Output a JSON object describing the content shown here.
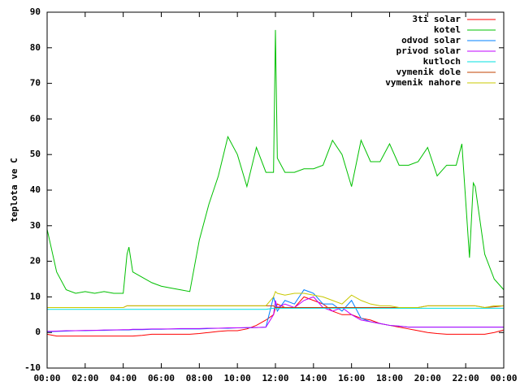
{
  "chart_data": {
    "type": "line",
    "ylabel": "teplota ve C",
    "x": [
      0,
      0.5,
      1,
      1.5,
      2,
      2.5,
      3,
      3.5,
      4,
      4.2,
      4.3,
      4.5,
      5,
      5.5,
      6,
      6.5,
      7,
      7.5,
      8,
      8.5,
      9,
      9.5,
      10,
      10.5,
      11,
      11.5,
      11.9,
      12,
      12.1,
      12.5,
      13,
      13.5,
      14,
      14.5,
      15,
      15.5,
      16,
      16.5,
      17,
      17.5,
      18,
      18.5,
      19,
      19.5,
      20,
      20.5,
      21,
      21.5,
      21.8,
      22,
      22.2,
      22.4,
      22.5,
      23,
      23.5,
      24
    ],
    "xlim": [
      0,
      24
    ],
    "xticks": [
      {
        "value": 0,
        "label": "00:00"
      },
      {
        "value": 2,
        "label": "02:00"
      },
      {
        "value": 4,
        "label": "04:00"
      },
      {
        "value": 6,
        "label": "06:00"
      },
      {
        "value": 8,
        "label": "08:00"
      },
      {
        "value": 10,
        "label": "10:00"
      },
      {
        "value": 12,
        "label": "12:00"
      },
      {
        "value": 14,
        "label": "14:00"
      },
      {
        "value": 16,
        "label": "16:00"
      },
      {
        "value": 18,
        "label": "18:00"
      },
      {
        "value": 20,
        "label": "20:00"
      },
      {
        "value": 22,
        "label": "22:00"
      },
      {
        "value": 24,
        "label": "00:00"
      }
    ],
    "ylim": [
      -10,
      90
    ],
    "yticks": [
      -10,
      0,
      10,
      20,
      30,
      40,
      50,
      60,
      70,
      80,
      90
    ],
    "legend": "top-right",
    "series": [
      {
        "name": "3ti solar",
        "color": "#ff0000",
        "values": [
          -0.5,
          -1,
          -1,
          -1,
          -1,
          -1,
          -1,
          -1,
          -1,
          -1,
          -1,
          -1,
          -0.8,
          -0.5,
          -0.5,
          -0.5,
          -0.5,
          -0.5,
          -0.3,
          0,
          0.3,
          0.5,
          0.5,
          1,
          2,
          3.5,
          5,
          7,
          8,
          7,
          7,
          10,
          9,
          8,
          6,
          5,
          5,
          4,
          3.5,
          2.5,
          2,
          1.5,
          1,
          0.5,
          0,
          -0.3,
          -0.5,
          -0.5,
          -0.5,
          -0.5,
          -0.5,
          -0.5,
          -0.5,
          -0.5,
          0,
          0.7
        ]
      },
      {
        "name": "kotel",
        "color": "#00c000",
        "values": [
          29,
          17,
          12,
          11,
          11.5,
          11,
          11.5,
          11,
          11,
          22,
          24,
          17,
          15.5,
          14,
          13,
          12.5,
          12,
          11.5,
          26,
          36,
          44,
          55,
          50,
          41,
          52,
          45,
          45,
          85,
          49,
          45,
          45,
          46,
          46,
          47,
          54,
          50,
          41,
          54,
          48,
          48,
          53,
          47,
          47,
          48,
          52,
          44,
          47,
          47,
          53,
          37,
          21,
          42,
          41,
          22,
          15,
          12
        ]
      },
      {
        "name": "odvod solar",
        "color": "#0080ff",
        "values": [
          0.2,
          0.3,
          0.4,
          0.5,
          0.5,
          0.6,
          0.6,
          0.7,
          0.7,
          0.7,
          0.7,
          0.8,
          0.8,
          0.9,
          0.9,
          1,
          1,
          1,
          1,
          1.1,
          1.2,
          1.2,
          1.3,
          1.3,
          1.4,
          1.5,
          10,
          8,
          6,
          9,
          8,
          12,
          11,
          8,
          8,
          6,
          9,
          4,
          3,
          2.5,
          2,
          1.8,
          1.5,
          1.5,
          1.5,
          1.5,
          1.5,
          1.5,
          1.5,
          1.5,
          1.5,
          1.5,
          1.5,
          1.5,
          1.5,
          1.5
        ]
      },
      {
        "name": "privod solar",
        "color": "#c000ff",
        "values": [
          0.3,
          0.4,
          0.5,
          0.5,
          0.6,
          0.6,
          0.7,
          0.7,
          0.8,
          0.8,
          0.8,
          0.9,
          0.9,
          1,
          1,
          1,
          1.1,
          1.1,
          1.1,
          1.2,
          1.2,
          1.3,
          1.3,
          1.4,
          1.4,
          1.5,
          5,
          9,
          7,
          8,
          7,
          9,
          10,
          7,
          6,
          7,
          5,
          3.5,
          3,
          2.5,
          2,
          1.8,
          1.5,
          1.5,
          1.5,
          1.5,
          1.5,
          1.5,
          1.5,
          1.5,
          1.5,
          1.5,
          1.5,
          1.5,
          1.5,
          1.5
        ]
      },
      {
        "name": "kutloch",
        "color": "#00e0e0",
        "values": [
          6.5,
          6.5,
          6.5,
          6.5,
          6.5,
          6.5,
          6.5,
          6.5,
          6.5,
          6.5,
          6.5,
          6.5,
          6.5,
          6.5,
          6.5,
          6.5,
          6.5,
          6.5,
          6.5,
          6.5,
          6.5,
          6.5,
          6.5,
          6.5,
          6.5,
          6.5,
          6.8,
          6.8,
          6.8,
          6.8,
          6.8,
          6.8,
          6.8,
          6.8,
          6.8,
          6.8,
          6.8,
          6.8,
          6.8,
          6.8,
          6.8,
          6.8,
          6.8,
          6.8,
          6.8,
          6.8,
          6.8,
          6.8,
          6.8,
          6.8,
          6.8,
          6.8,
          6.8,
          6.8,
          6.8,
          6.8
        ]
      },
      {
        "name": "vymenik dole",
        "color": "#c04000",
        "values": [
          7,
          7,
          7,
          7,
          7,
          7,
          7,
          7,
          7,
          7.5,
          7.5,
          7.5,
          7.5,
          7.5,
          7.5,
          7.5,
          7.5,
          7.5,
          7.5,
          7.5,
          7.5,
          7.5,
          7.5,
          7.5,
          7.5,
          7.5,
          7.5,
          7,
          7,
          7,
          7,
          7,
          7,
          7,
          7,
          7,
          7,
          7,
          7,
          7,
          7,
          7,
          7,
          7,
          7.5,
          7.5,
          7.5,
          7.5,
          7.5,
          7.5,
          7.5,
          7.5,
          7.5,
          7,
          7.2,
          7.5
        ]
      },
      {
        "name": "vymenik nahore",
        "color": "#c8c800",
        "values": [
          7,
          7,
          7,
          7,
          7,
          7,
          7,
          7,
          7,
          7.5,
          7.5,
          7.5,
          7.5,
          7.5,
          7.5,
          7.5,
          7.5,
          7.5,
          7.5,
          7.5,
          7.5,
          7.5,
          7.5,
          7.5,
          7.5,
          7.5,
          10,
          11.5,
          11,
          10.5,
          11,
          11,
          10.5,
          10,
          9,
          8,
          10.5,
          9,
          8,
          7.5,
          7.5,
          7,
          7,
          7,
          7.5,
          7.5,
          7.5,
          7.5,
          7.5,
          7.5,
          7.5,
          7.5,
          7.5,
          7,
          7.5,
          7.5
        ]
      }
    ]
  }
}
